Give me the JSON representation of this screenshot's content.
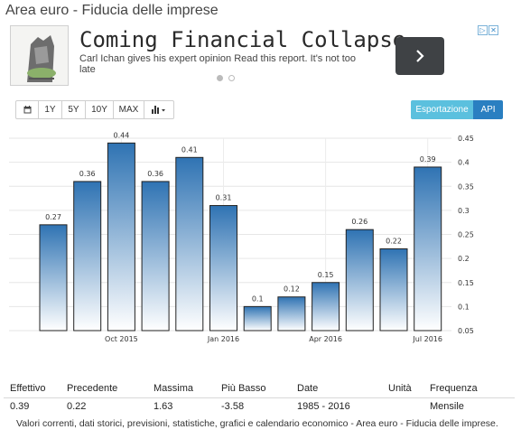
{
  "page": {
    "title": "Area euro - Fiducia delle imprese"
  },
  "ad": {
    "headline": "Coming Financial Collapse",
    "description": "Carl Ichan gives his expert opinion Read this report. It's not too late",
    "arrow_icon": "chevron-right-icon",
    "choices_icon": "adchoices-icon",
    "close_icon": "close-icon",
    "dots": 2,
    "active_dot": 0
  },
  "toolbar": {
    "calendar_icon": "calendar-icon",
    "ranges": [
      "1Y",
      "5Y",
      "10Y",
      "MAX"
    ],
    "chart_type_icon": "bar-chart-icon",
    "export_label": "Esportazione",
    "api_label": "API"
  },
  "colors": {
    "bar_top": "#2f73b3",
    "bar_bottom": "#ffffff",
    "export": "#5bc0de",
    "api": "#2a7fc1"
  },
  "chart_data": {
    "type": "bar",
    "values": [
      0.27,
      0.36,
      0.44,
      0.36,
      0.41,
      0.31,
      0.1,
      0.12,
      0.15,
      0.26,
      0.22,
      0.39
    ],
    "x_tick_labels": [
      {
        "index": 2,
        "label": "Oct 2015"
      },
      {
        "index": 5,
        "label": "Jan 2016"
      },
      {
        "index": 8,
        "label": "Apr 2016"
      },
      {
        "index": 11,
        "label": "Jul 2016"
      }
    ],
    "ylim": [
      0.05,
      0.45
    ],
    "y_ticks": [
      "0.45",
      "0.4",
      "0.35",
      "0.3",
      "0.25",
      "0.2",
      "0.15",
      "0.1",
      "0.05"
    ],
    "y_axis_side": "right",
    "grid": true,
    "data_labels": true
  },
  "stats": {
    "headers": [
      "Effettivo",
      "Precedente",
      "Massima",
      "Più Basso",
      "Date",
      "Unità",
      "Frequenza"
    ],
    "values": [
      "0.39",
      "0.22",
      "1.63",
      "-3.58",
      "1985 - 2016",
      "",
      "Mensile"
    ]
  },
  "footnote": "Valori correnti, dati storici, previsioni, statistiche, grafici e calendario economico - Area euro - Fiducia delle imprese."
}
